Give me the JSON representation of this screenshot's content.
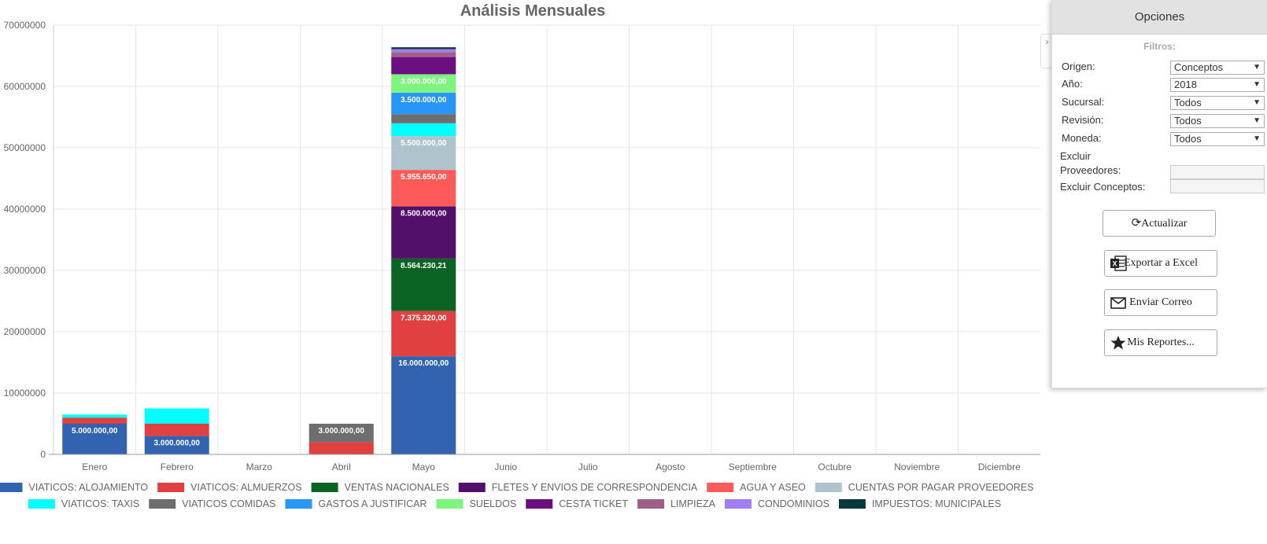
{
  "chart_data": {
    "type": "bar",
    "stacked": true,
    "title": "Análisis Mensuales",
    "categories": [
      "Enero",
      "Febrero",
      "Marzo",
      "Abril",
      "Mayo",
      "Junio",
      "Julio",
      "Agosto",
      "Septiembre",
      "Octubre",
      "Noviembre",
      "Diciembre"
    ],
    "ylim": [
      0,
      70000000
    ],
    "yticks": [
      "0",
      "10000000",
      "20000000",
      "30000000",
      "40000000",
      "50000000",
      "60000000",
      "70000000"
    ],
    "grid": true,
    "legend_position": "bottom",
    "series": [
      {
        "name": "VIATICOS: ALOJAMIENTO",
        "color": "#3163b0",
        "values": [
          5000000,
          3000000,
          0,
          0,
          16000000,
          0,
          0,
          0,
          0,
          0,
          0,
          0
        ],
        "labels": [
          "5.000.000,00",
          "3.000.000,00",
          "",
          "",
          "16.000.000,00",
          "",
          "",
          "",
          "",
          "",
          "",
          ""
        ]
      },
      {
        "name": "VIATICOS: ALMUERZOS",
        "color": "#e14040",
        "values": [
          1000000,
          2000000,
          0,
          2000000,
          7375320,
          0,
          0,
          0,
          0,
          0,
          0,
          0
        ],
        "labels": [
          "",
          "",
          "",
          "",
          "7.375.320,00",
          "",
          "",
          "",
          "",
          "",
          "",
          ""
        ]
      },
      {
        "name": "VENTAS NACIONALES",
        "color": "#0b6324",
        "values": [
          0,
          0,
          0,
          0,
          8564230.21,
          0,
          0,
          0,
          0,
          0,
          0,
          0
        ],
        "labels": [
          "",
          "",
          "",
          "",
          "8.564.230,21",
          "",
          "",
          "",
          "",
          "",
          "",
          ""
        ]
      },
      {
        "name": "FLETES Y ENVIOS DE CORRESPONDENCIA",
        "color": "#52106a",
        "values": [
          0,
          0,
          0,
          0,
          8500000,
          0,
          0,
          0,
          0,
          0,
          0,
          0
        ],
        "labels": [
          "",
          "",
          "",
          "",
          "8.500.000,00",
          "",
          "",
          "",
          "",
          "",
          "",
          ""
        ]
      },
      {
        "name": "AGUA Y ASEO",
        "color": "#fe5a5a",
        "values": [
          0,
          0,
          0,
          0,
          5955650,
          0,
          0,
          0,
          0,
          0,
          0,
          0
        ],
        "labels": [
          "",
          "",
          "",
          "",
          "5.955.650,00",
          "",
          "",
          "",
          "",
          "",
          "",
          ""
        ]
      },
      {
        "name": "CUENTAS POR PAGAR PROVEEDORES",
        "color": "#aec3cb",
        "values": [
          0,
          0,
          0,
          0,
          5500000,
          0,
          0,
          0,
          0,
          0,
          0,
          0
        ],
        "labels": [
          "",
          "",
          "",
          "",
          "5.500.000,00",
          "",
          "",
          "",
          "",
          "",
          "",
          ""
        ]
      },
      {
        "name": "VIATICOS: TAXIS",
        "color": "#00ffff",
        "values": [
          500000,
          2500000,
          0,
          0,
          2100000,
          0,
          0,
          0,
          0,
          0,
          0,
          0
        ],
        "labels": [
          "",
          "",
          "",
          "",
          "",
          "",
          "",
          "",
          "",
          "",
          "",
          ""
        ]
      },
      {
        "name": "VIATICOS COMIDAS",
        "color": "#6e6e6e",
        "values": [
          0,
          0,
          0,
          3000000,
          1500000,
          0,
          0,
          0,
          0,
          0,
          0,
          0
        ],
        "labels": [
          "",
          "",
          "",
          "3.000.000,00",
          "",
          "",
          "",
          "",
          "",
          "",
          "",
          ""
        ]
      },
      {
        "name": "GASTOS A JUSTIFICAR",
        "color": "#2896f7",
        "values": [
          0,
          0,
          0,
          0,
          3500000,
          0,
          0,
          0,
          0,
          0,
          0,
          0
        ],
        "labels": [
          "",
          "",
          "",
          "",
          "3.500.000,00",
          "",
          "",
          "",
          "",
          "",
          "",
          ""
        ]
      },
      {
        "name": "SUELDOS",
        "color": "#7df47d",
        "values": [
          0,
          0,
          0,
          0,
          3000000,
          0,
          0,
          0,
          0,
          0,
          0,
          0
        ],
        "labels": [
          "",
          "",
          "",
          "",
          "3.000.000,00",
          "",
          "",
          "",
          "",
          "",
          "",
          ""
        ]
      },
      {
        "name": "CESTA TICKET",
        "color": "#6b0f80",
        "values": [
          0,
          0,
          0,
          0,
          2800000,
          0,
          0,
          0,
          0,
          0,
          0,
          0
        ],
        "labels": [
          "",
          "",
          "",
          "",
          "",
          "",
          "",
          "",
          "",
          "",
          "",
          ""
        ]
      },
      {
        "name": "LIMPIEZA",
        "color": "#9f5f86",
        "values": [
          0,
          0,
          0,
          0,
          800000,
          0,
          0,
          0,
          0,
          0,
          0,
          0
        ],
        "labels": [
          "",
          "",
          "",
          "",
          "",
          "",
          "",
          "",
          "",
          "",
          "",
          ""
        ]
      },
      {
        "name": "CONDOMINIOS",
        "color": "#a07ff5",
        "values": [
          0,
          0,
          0,
          0,
          500000,
          0,
          0,
          0,
          0,
          0,
          0,
          0
        ],
        "labels": [
          "",
          "",
          "",
          "",
          "",
          "",
          "",
          "",
          "",
          "",
          "",
          ""
        ]
      },
      {
        "name": "IMPUESTOS: MUNICIPALES",
        "color": "#063a3c",
        "values": [
          0,
          0,
          0,
          0,
          300000,
          0,
          0,
          0,
          0,
          0,
          0,
          0
        ],
        "labels": [
          "",
          "",
          "",
          "",
          "",
          "",
          "",
          "",
          "",
          "",
          "",
          ""
        ]
      }
    ]
  },
  "panel": {
    "title": "Opciones",
    "filters_title": "Filtros:",
    "collapse_icon": "chevron-right-icon",
    "fields": {
      "origen": {
        "label": "Origen:",
        "value": "Conceptos"
      },
      "anio": {
        "label": "Año:",
        "value": "2018"
      },
      "sucursal": {
        "label": "Sucursal:",
        "value": "Todos"
      },
      "revision": {
        "label": "Revisión:",
        "value": "Todos"
      },
      "moneda": {
        "label": "Moneda:",
        "value": "Todos"
      }
    },
    "excluir_proveedores": {
      "label_line1": "Excluir",
      "label_line2": "Proveedores:",
      "value": ""
    },
    "excluir_conceptos": {
      "label": "Excluir Conceptos:",
      "value": ""
    },
    "buttons": {
      "actualizar": {
        "label": "Actualizar",
        "icon": "refresh-icon"
      },
      "exportar": {
        "label": "Exportar a Excel",
        "icon": "excel-icon"
      },
      "correo": {
        "label": "Enviar Correo",
        "icon": "envelope-icon"
      },
      "reportes": {
        "label": "Mis Reportes...",
        "icon": "star-icon"
      }
    }
  }
}
